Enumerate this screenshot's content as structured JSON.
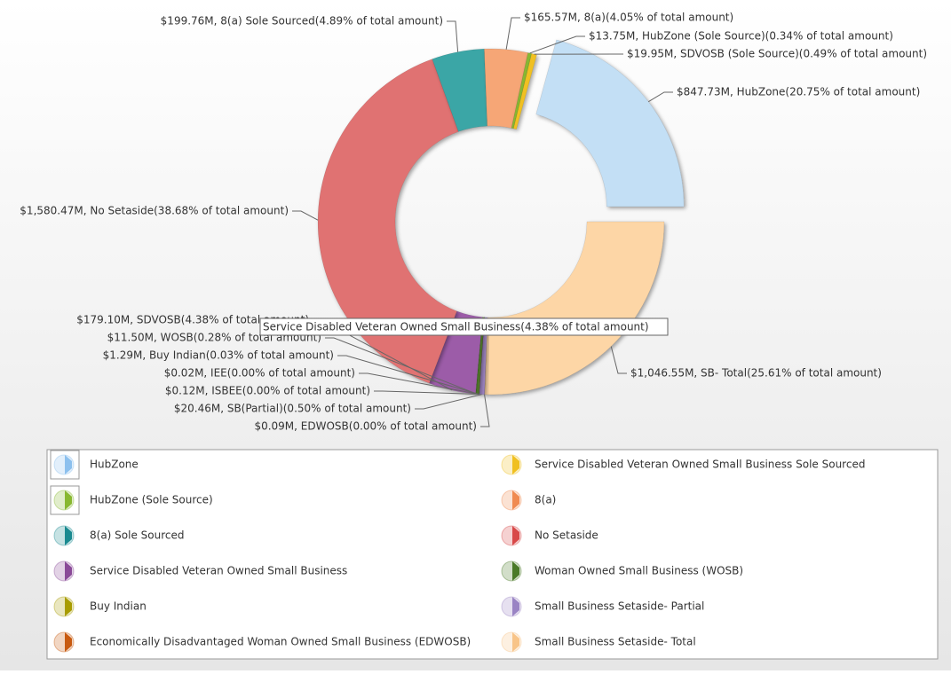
{
  "chart_data": {
    "type": "pie",
    "categories": [
      "HubZone",
      "SB- Total",
      "EDWOSB",
      "SB(Partial)",
      "ISBEE",
      "IEE",
      "Buy Indian",
      "WOSB",
      "SDVOSB",
      "No Setaside",
      "8(a) Sole Sourced",
      "8(a)",
      "HubZone (Sole Source)",
      "SDVOSB (Sole Source)"
    ],
    "values": [
      847.73,
      1046.55,
      0.09,
      20.46,
      0.12,
      0.02,
      1.29,
      11.5,
      179.1,
      1580.47,
      199.76,
      165.57,
      13.75,
      19.95
    ],
    "value_labels": [
      "$847.73M, HubZone(20.75% of total amount)",
      "$1,046.55M, SB- Total(25.61% of total amount)",
      "$0.09M, EDWOSB(0.00% of total amount)",
      "$20.46M, SB(Partial)(0.50% of total amount)",
      "$0.12M, ISBEE(0.00% of total amount)",
      "$0.02M, IEE(0.00% of total amount)",
      "$1.29M, Buy Indian(0.03% of total amount)",
      "$11.50M, WOSB(0.28% of total amount)",
      "$179.10M, SDVOSB(4.38% of total amount)",
      "$1,580.47M, No Setaside(38.68% of total amount)",
      "$199.76M, 8(a) Sole Sourced(4.89% of total amount)",
      "$165.57M, 8(a)(4.05% of total amount)",
      "$13.75M, HubZone (Sole Source)(0.34% of total amount)",
      "$19.95M, SDVOSB (Sole Source)(0.49% of total amount)"
    ],
    "colors": [
      "#c3dff5",
      "#fdd6a6",
      "#d06020",
      "#9f86c6",
      "#b8b8d8",
      "#c8c8c8",
      "#b3a800",
      "#5d8f32",
      "#9c5ca8",
      "#e07272",
      "#3aa6a6",
      "#f6a676",
      "#88b830",
      "#f0c020"
    ],
    "tooltip": "Service Disabled Veteran Owned Small Business(4.38% of total amount)",
    "legend": [
      {
        "name": "HubZone",
        "color": "#8cc0ee"
      },
      {
        "name": "Service Disabled Veteran Owned Small Business Sole Sourced",
        "color": "#f0c020"
      },
      {
        "name": "HubZone (Sole Source)",
        "color": "#88b830"
      },
      {
        "name": "8(a)",
        "color": "#f08a50"
      },
      {
        "name": "8(a) Sole Sourced",
        "color": "#1a8a90"
      },
      {
        "name": "No Setaside",
        "color": "#d84848"
      },
      {
        "name": "Service Disabled Veteran Owned Small Business",
        "color": "#8a4a98"
      },
      {
        "name": "Woman Owned Small Business (WOSB)",
        "color": "#4a7a28"
      },
      {
        "name": "Buy Indian",
        "color": "#a89c00"
      },
      {
        "name": "Small Business Setaside- Partial",
        "color": "#9a84c4"
      },
      {
        "name": "Economically Disadvantaged Woman Owned Small Business (EDWOSB)",
        "color": "#c85a10"
      },
      {
        "name": "Small Business Setaside- Total",
        "color": "#f8c488"
      }
    ]
  }
}
